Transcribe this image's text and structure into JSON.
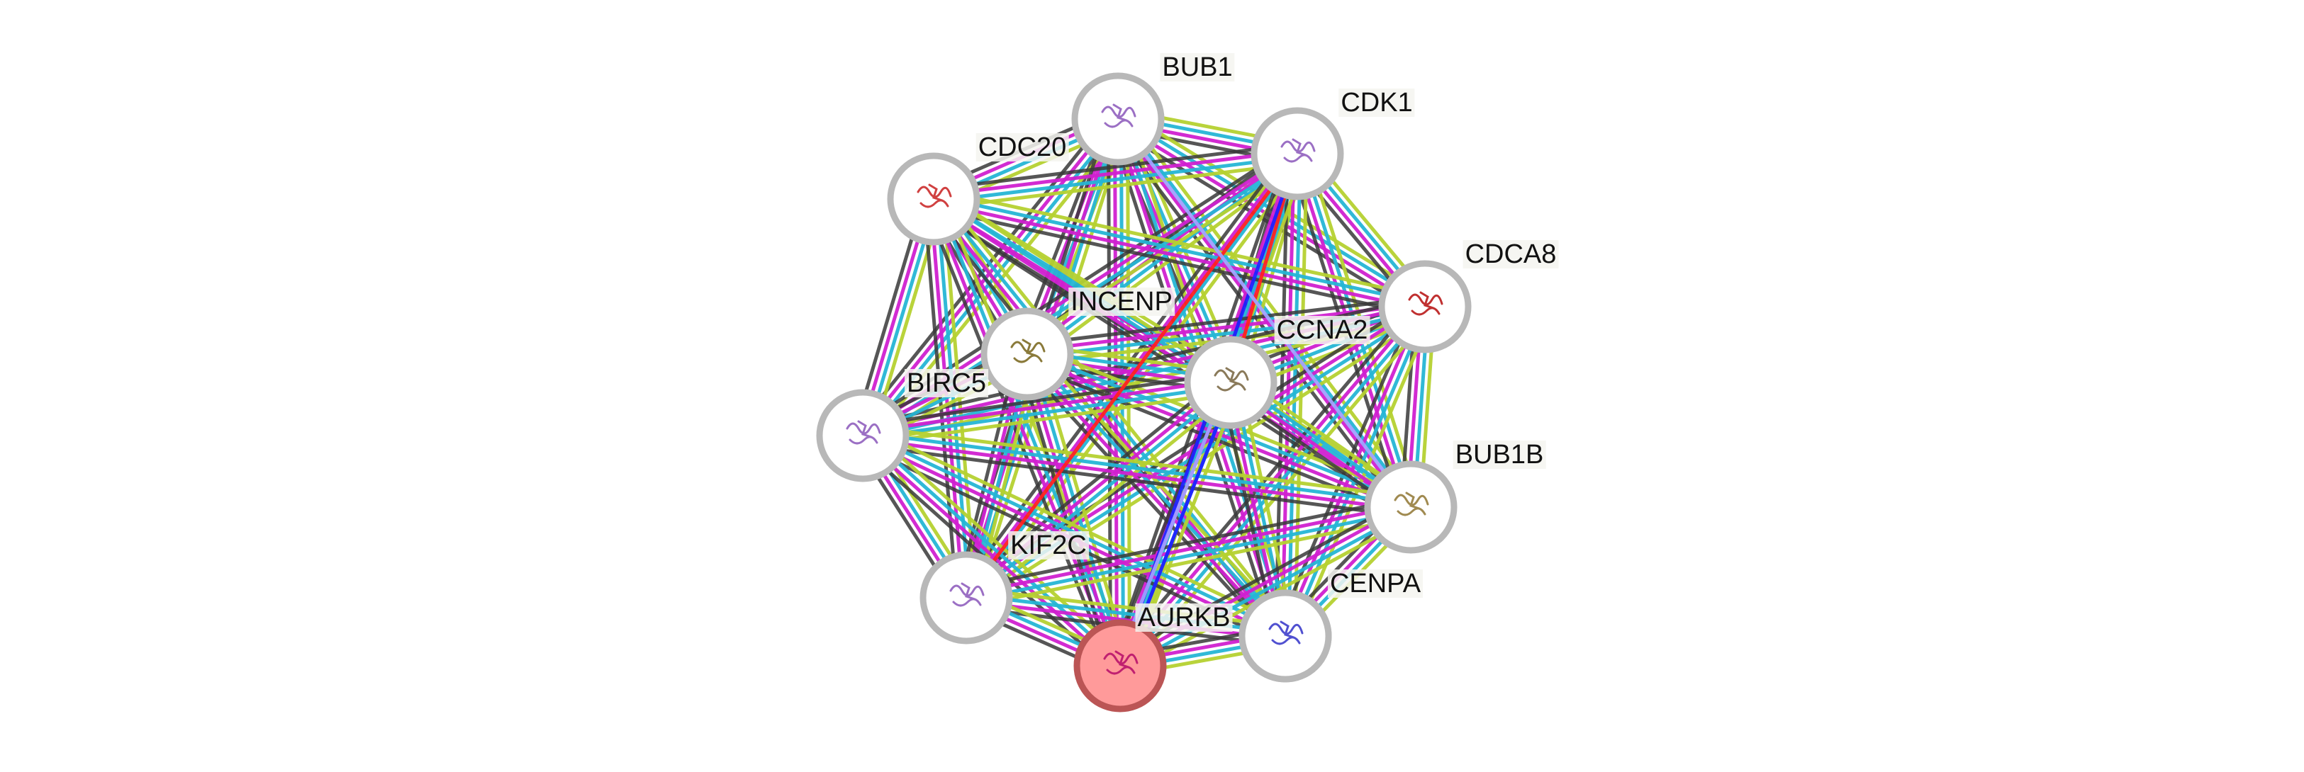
{
  "nodes": [
    {
      "id": "BUB1",
      "label": "BUB1",
      "structure_color": "#9b6fc4"
    },
    {
      "id": "CDK1",
      "label": "CDK1",
      "structure_color": "#9b6fc4"
    },
    {
      "id": "CDC20",
      "label": "CDC20",
      "structure_color": "#d04040"
    },
    {
      "id": "CDCA8",
      "label": "CDCA8",
      "structure_color": "#c03030"
    },
    {
      "id": "INCENP",
      "label": "INCENP",
      "structure_color": "#8a7a3a"
    },
    {
      "id": "CCNA2",
      "label": "CCNA2",
      "structure_color": "#8a7a5a"
    },
    {
      "id": "BIRC5",
      "label": "BIRC5",
      "structure_color": "#9b6fc4"
    },
    {
      "id": "BUB1B",
      "label": "BUB1B",
      "structure_color": "#a08a50"
    },
    {
      "id": "KIF2C",
      "label": "KIF2C",
      "structure_color": "#9b6fc4"
    },
    {
      "id": "CENPA",
      "label": "CENPA",
      "structure_color": "#5050d0"
    },
    {
      "id": "AURKB",
      "label": "AURKB",
      "structure_color": "#c02070",
      "query": true
    }
  ],
  "colors": {
    "node_border": "#b8b8b8",
    "query_fill": "#ff9a9a",
    "query_border": "#bb5555",
    "textmining": "#b5d130",
    "databases": "#25b5d5",
    "experiments": "#d020d0",
    "coexpression": "#383838",
    "gene_fusion": "#ff2020",
    "cooccurrence": "#2020ff",
    "homology": "#a0a0ff"
  },
  "default_evidence": [
    "textmining",
    "databases",
    "experiments",
    "coexpression"
  ],
  "special_edges": [
    {
      "a": "CDK1",
      "b": "KIF2C",
      "evidence": [
        "gene_fusion"
      ]
    },
    {
      "a": "CDK1",
      "b": "CCNA2",
      "evidence": [
        "gene_fusion"
      ]
    },
    {
      "a": "CDK1",
      "b": "AURKB",
      "evidence": [
        "cooccurrence"
      ]
    },
    {
      "a": "CCNA2",
      "b": "AURKB",
      "evidence": [
        "cooccurrence",
        "homology"
      ]
    },
    {
      "a": "BUB1",
      "b": "BUB1B",
      "evidence": [
        "homology"
      ]
    }
  ]
}
